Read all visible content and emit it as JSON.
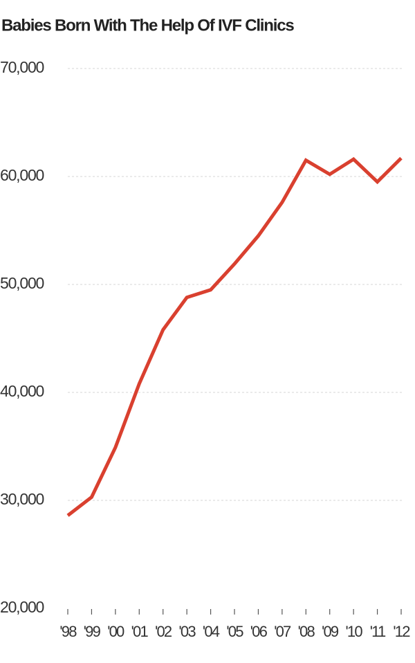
{
  "chart_data": {
    "type": "line",
    "title": "Babies Born With The Help Of IVF Clinics",
    "categories": [
      "'98",
      "'99",
      "'00",
      "'01",
      "'02",
      "'03",
      "'04",
      "'05",
      "'06",
      "'07",
      "'08",
      "'09",
      "'10",
      "'11",
      "'12"
    ],
    "series": [
      {
        "name": "Babies born",
        "color": "#d9402f",
        "values": [
          28600,
          30300,
          34900,
          40800,
          45800,
          48800,
          49500,
          51900,
          54500,
          57600,
          61500,
          60200,
          61600,
          59500,
          61700
        ]
      }
    ],
    "ylim": [
      20000,
      70000
    ],
    "yticks": [
      {
        "value": 20000,
        "label": "20,000"
      },
      {
        "value": 30000,
        "label": "30,000"
      },
      {
        "value": 40000,
        "label": "40,000"
      },
      {
        "value": 50000,
        "label": "50,000"
      },
      {
        "value": 60000,
        "label": "60,000"
      },
      {
        "value": 70000,
        "label": "70,000"
      }
    ],
    "grid": true
  }
}
